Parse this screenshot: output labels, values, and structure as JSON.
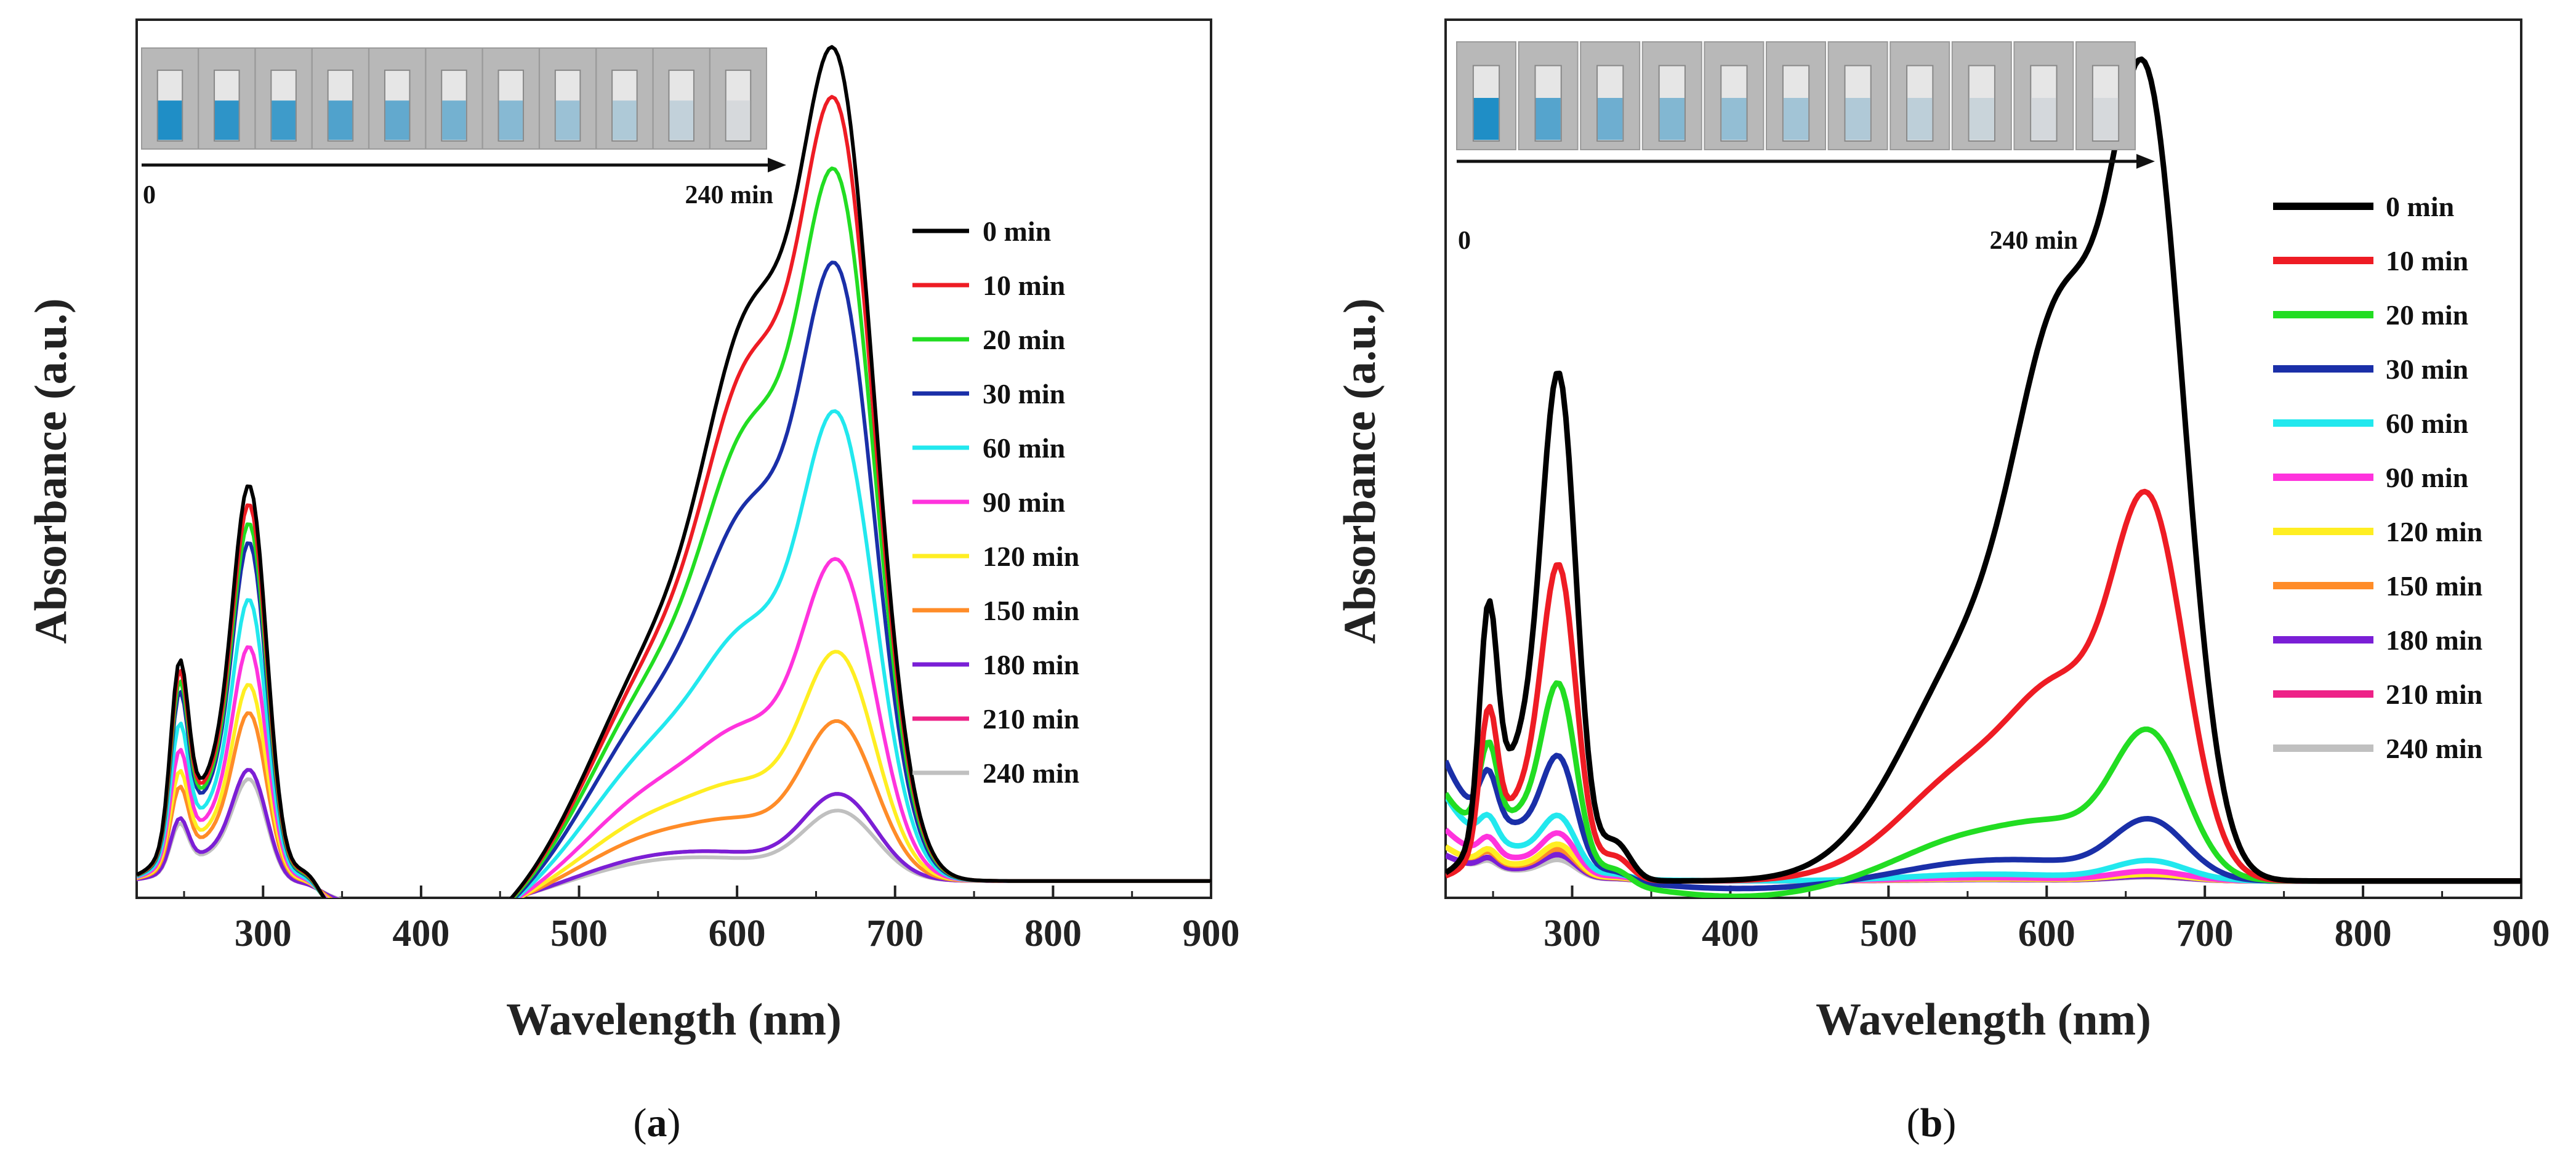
{
  "figure": {
    "panel_labels": [
      {
        "open": "(",
        "letter": "a",
        "close": ")"
      },
      {
        "open": "(",
        "letter": "b",
        "close": ")"
      }
    ],
    "inset": {
      "start_label": "0",
      "end_label": "240 min",
      "count": 11
    },
    "colors": {
      "background": "#ffffff",
      "axis": "#222222",
      "cuvette_bg": "#b8b8b8",
      "cuvette_liquid_start": "#1f8ec6",
      "cuvette_liquid_end": "#d6d9dc"
    }
  },
  "chart_data": [
    {
      "type": "line",
      "title": "",
      "xlabel": "Wavelength (nm)",
      "ylabel": "Absorbance (a.u.)",
      "xlim": [
        220,
        900
      ],
      "ylim": [
        0,
        1
      ],
      "xticks": [
        300,
        400,
        500,
        600,
        700,
        800,
        900
      ],
      "yticks": [],
      "grid": false,
      "legend_position": "right",
      "series": [
        {
          "name": "0 min",
          "color": "#000000",
          "params": [
            0.925,
            0.55,
            0.42,
            0.082,
            0.0
          ]
        },
        {
          "name": "10 min",
          "color": "#ee1c24",
          "params": [
            0.875,
            0.52,
            0.4,
            0.08,
            0.0
          ]
        },
        {
          "name": "20 min",
          "color": "#22dd22",
          "params": [
            0.8,
            0.49,
            0.38,
            0.079,
            0.0
          ]
        },
        {
          "name": "30 min",
          "color": "#1a2fa8",
          "params": [
            0.7,
            0.45,
            0.36,
            0.077,
            0.0
          ]
        },
        {
          "name": "60 min",
          "color": "#22e8ee",
          "params": [
            0.54,
            0.37,
            0.3,
            0.07,
            0.0
          ]
        },
        {
          "name": "90 min",
          "color": "#ff33dd",
          "params": [
            0.375,
            0.3,
            0.25,
            0.062,
            0.0
          ]
        },
        {
          "name": "120 min",
          "color": "#ffee22",
          "params": [
            0.27,
            0.24,
            0.21,
            0.056,
            0.0
          ]
        },
        {
          "name": "150 min",
          "color": "#ff8c28",
          "params": [
            0.19,
            0.19,
            0.18,
            0.05,
            0.0
          ]
        },
        {
          "name": "180 min",
          "color": "#7a1fd6",
          "params": [
            0.105,
            0.11,
            0.12,
            0.042,
            0.0
          ]
        },
        {
          "name": "210 min",
          "color": "#ee2288",
          "params": [
            0.105,
            0.11,
            0.12,
            0.042,
            0.0
          ]
        },
        {
          "name": "240 min",
          "color": "#c0c0c0",
          "params": [
            0.085,
            0.1,
            0.11,
            0.04,
            0.0
          ]
        }
      ]
    },
    {
      "type": "line",
      "title": "",
      "xlabel": "Wavelength (nm)",
      "ylabel": "Absorbance (a.u.)",
      "xlim": [
        220,
        900
      ],
      "ylim": [
        0,
        1
      ],
      "xticks": [
        300,
        400,
        500,
        600,
        700,
        800,
        900
      ],
      "yticks": [],
      "grid": false,
      "legend_position": "right",
      "series": [
        {
          "name": "0 min",
          "color": "#000000",
          "params": [
            0.905,
            0.585,
            0.53,
            0.0,
            0.0
          ]
        },
        {
          "name": "10 min",
          "color": "#ee1c24",
          "params": [
            0.45,
            0.34,
            0.33,
            0.0,
            0.0
          ]
        },
        {
          "name": "20 min",
          "color": "#22dd22",
          "params": [
            0.18,
            0.2,
            0.2,
            0.02,
            0.1
          ]
        },
        {
          "name": "30 min",
          "color": "#1a2fa8",
          "params": [
            0.075,
            0.11,
            0.12,
            0.01,
            0.14
          ]
        },
        {
          "name": "60 min",
          "color": "#22e8ee",
          "params": [
            0.025,
            0.05,
            0.06,
            0.0,
            0.1
          ]
        },
        {
          "name": "90 min",
          "color": "#ff33dd",
          "params": [
            0.012,
            0.035,
            0.045,
            0.0,
            0.06
          ]
        },
        {
          "name": "120 min",
          "color": "#ffee22",
          "params": [
            0.008,
            0.025,
            0.035,
            0.0,
            0.04
          ]
        },
        {
          "name": "150 min",
          "color": "#ff8c28",
          "params": [
            0.008,
            0.022,
            0.03,
            0.0,
            0.04
          ]
        },
        {
          "name": "180 min",
          "color": "#7a1fd6",
          "params": [
            0.006,
            0.02,
            0.025,
            0.0,
            0.03
          ]
        },
        {
          "name": "210 min",
          "color": "#ee2288",
          "params": [
            0.006,
            0.02,
            0.025,
            0.0,
            0.03
          ]
        },
        {
          "name": "240 min",
          "color": "#c0c0c0",
          "params": [
            0.005,
            0.018,
            0.02,
            0.0,
            0.03
          ]
        }
      ]
    }
  ]
}
